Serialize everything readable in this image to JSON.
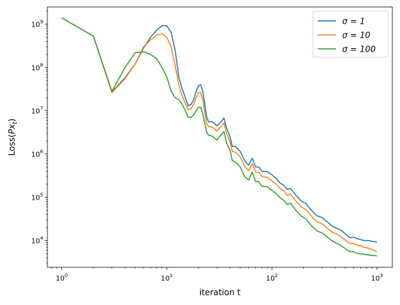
{
  "chart_data": {
    "type": "line",
    "title": "",
    "xlabel": "iteration t",
    "ylabel": "Loss(Px_t)",
    "xscale": "log",
    "yscale": "log",
    "xlim": [
      0.73,
      1400
    ],
    "ylim": [
      2400,
      2500000000
    ],
    "grid": false,
    "legend_position": "top-right",
    "x_ticks": [
      {
        "value": 1,
        "base": "10",
        "exp": "0"
      },
      {
        "value": 10,
        "base": "10",
        "exp": "1"
      },
      {
        "value": 100,
        "base": "10",
        "exp": "2"
      },
      {
        "value": 1000,
        "base": "10",
        "exp": "3"
      }
    ],
    "y_ticks": [
      {
        "value": 10000,
        "base": "10",
        "exp": "4"
      },
      {
        "value": 100000,
        "base": "10",
        "exp": "5"
      },
      {
        "value": 1000000,
        "base": "10",
        "exp": "6"
      },
      {
        "value": 10000000,
        "base": "10",
        "exp": "7"
      },
      {
        "value": 100000000,
        "base": "10",
        "exp": "8"
      },
      {
        "value": 1000000000,
        "base": "10",
        "exp": "9"
      }
    ],
    "series": [
      {
        "name": "σ = 1",
        "color": "#1f77b4",
        "x": [
          1,
          2,
          3,
          4,
          5,
          6,
          7,
          8,
          9,
          10,
          11,
          12,
          13,
          14,
          15,
          16,
          17,
          18,
          19,
          20,
          21,
          22,
          23,
          24,
          25,
          27,
          30,
          32,
          35,
          37,
          40,
          42,
          45,
          48,
          50,
          55,
          60,
          65,
          70,
          75,
          80,
          90,
          100,
          110,
          120,
          130,
          140,
          150,
          170,
          190,
          210,
          230,
          250,
          270,
          300,
          330,
          370,
          400,
          440,
          480,
          520,
          560,
          600,
          650,
          700,
          750,
          800,
          850,
          900,
          950,
          1000
        ],
        "y": [
          1400000000,
          530000000,
          27000000,
          58000000,
          120000000,
          280000000,
          500000000,
          730000000,
          920000000,
          920000000,
          640000000,
          250000000,
          60000000,
          32000000,
          20000000,
          13000000,
          14000000,
          18000000,
          28000000,
          38000000,
          40000000,
          28000000,
          14000000,
          7000000,
          5500000,
          5600000,
          4500000,
          5200000,
          6800000,
          4000000,
          2500000,
          1500000,
          1500000,
          1250000,
          1150000,
          700000,
          550000,
          800000,
          500000,
          500000,
          400000,
          390000,
          330000,
          270000,
          210000,
          190000,
          150000,
          160000,
          110000,
          82000,
          72000,
          55000,
          44000,
          37000,
          34000,
          28000,
          22000,
          20000,
          18000,
          15500,
          13000,
          11500,
          12000,
          11000,
          10500,
          10000,
          10000,
          10000,
          9500,
          9500,
          9000
        ]
      },
      {
        "name": "σ = 10",
        "color": "#ff7f0e",
        "x": [
          1,
          2,
          3,
          4,
          5,
          6,
          7,
          8,
          9,
          10,
          11,
          12,
          13,
          14,
          15,
          16,
          17,
          18,
          19,
          20,
          21,
          22,
          23,
          24,
          25,
          27,
          30,
          32,
          35,
          37,
          40,
          42,
          45,
          48,
          50,
          55,
          60,
          65,
          70,
          75,
          80,
          90,
          100,
          110,
          120,
          130,
          140,
          150,
          170,
          190,
          210,
          230,
          250,
          270,
          300,
          330,
          370,
          400,
          440,
          480,
          520,
          560,
          600,
          650,
          700,
          750,
          800,
          850,
          900,
          950,
          1000
        ],
        "y": [
          1400000000,
          530000000,
          26000000,
          55000000,
          120000000,
          300000000,
          430000000,
          560000000,
          600000000,
          500000000,
          300000000,
          110000000,
          40000000,
          22000000,
          15000000,
          10500000,
          11000000,
          14000000,
          20000000,
          26000000,
          27000000,
          18000000,
          9000000,
          5000000,
          4300000,
          4200000,
          3400000,
          4000000,
          5200000,
          3000000,
          1900000,
          1150000,
          1100000,
          950000,
          850000,
          520000,
          410000,
          600000,
          380000,
          380000,
          300000,
          290000,
          240000,
          200000,
          160000,
          140000,
          110000,
          120000,
          80000,
          60000,
          52000,
          40000,
          32000,
          27000,
          24500,
          20000,
          16000,
          14500,
          13000,
          11000,
          9500,
          8500,
          8500,
          7800,
          7500,
          7000,
          6800,
          6500,
          6200,
          5800,
          5500
        ]
      },
      {
        "name": "σ = 100",
        "color": "#2ca02c",
        "x": [
          1,
          2,
          3,
          4,
          5,
          6,
          7,
          8,
          9,
          10,
          11,
          12,
          13,
          14,
          15,
          16,
          17,
          18,
          19,
          20,
          21,
          22,
          23,
          24,
          25,
          27,
          30,
          32,
          35,
          37,
          40,
          42,
          45,
          48,
          50,
          55,
          60,
          65,
          70,
          75,
          80,
          90,
          100,
          110,
          120,
          130,
          140,
          150,
          170,
          190,
          210,
          230,
          250,
          270,
          300,
          330,
          370,
          400,
          440,
          480,
          520,
          560,
          600,
          650,
          700,
          750,
          800,
          850,
          900,
          950,
          1000
        ],
        "y": [
          1400000000,
          530000000,
          28000000,
          100000000,
          220000000,
          230000000,
          200000000,
          160000000,
          100000000,
          60000000,
          28000000,
          20000000,
          18000000,
          14000000,
          10000000,
          7000000,
          7000000,
          8000000,
          10000000,
          12000000,
          12000000,
          8500000,
          5000000,
          3200000,
          2700000,
          2600000,
          2100000,
          2600000,
          3300000,
          1800000,
          1200000,
          700000,
          650000,
          560000,
          500000,
          300000,
          250000,
          380000,
          230000,
          230000,
          180000,
          175000,
          145000,
          120000,
          97000,
          85000,
          68000,
          73000,
          49000,
          37000,
          32000,
          24000,
          19500,
          16500,
          15000,
          12500,
          10000,
          9000,
          8000,
          7000,
          6000,
          5500,
          5500,
          5000,
          4900,
          4800,
          4700,
          4600,
          4500,
          4500,
          4400
        ]
      }
    ]
  }
}
